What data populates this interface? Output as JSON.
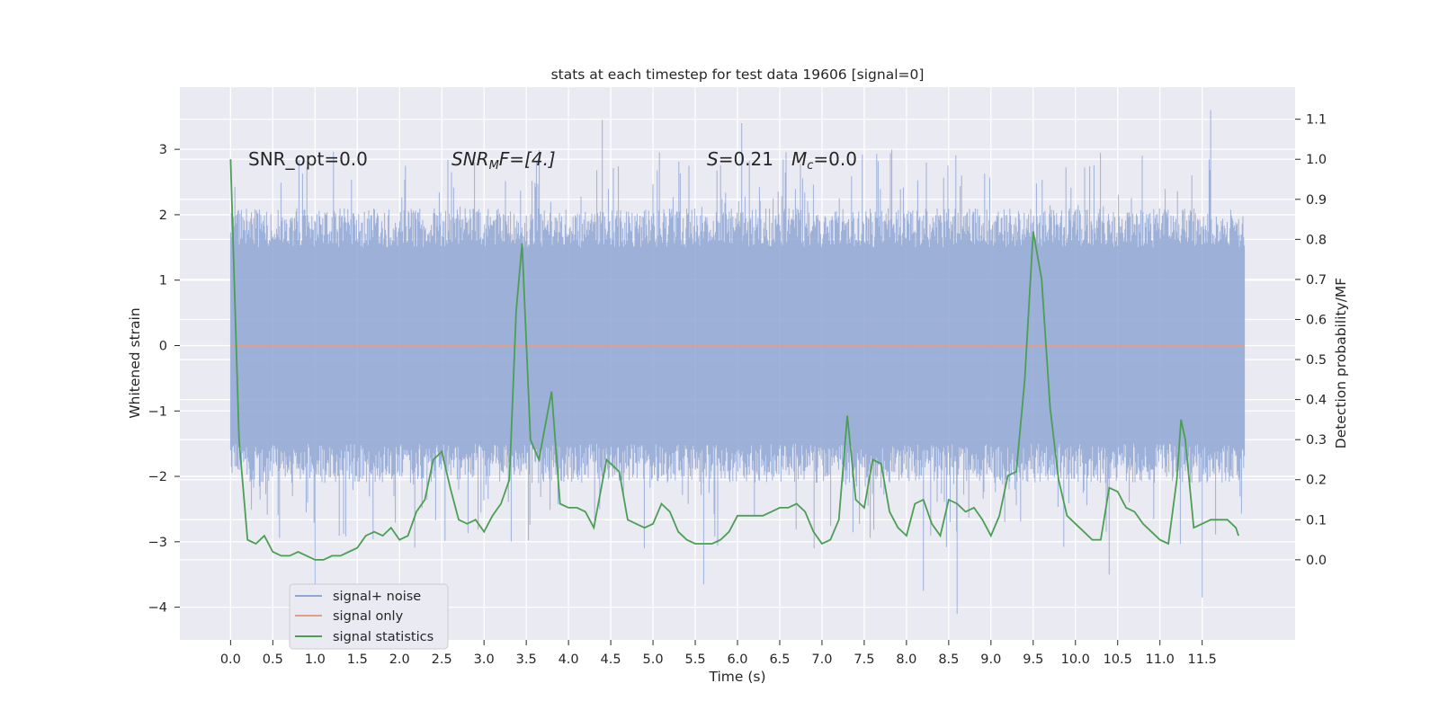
{
  "chart_data": {
    "type": "line",
    "title": "stats at each timestep for test data 19606 [signal=0]",
    "xlabel": "Time (s)",
    "ylabel_left": "Whitened strain",
    "ylabel_right": "Detection probability/MF",
    "xlim": [
      -0.6,
      12.6
    ],
    "ylim_left": [
      -4.5,
      3.95
    ],
    "ylim_right": [
      -0.2,
      1.18
    ],
    "xticks": [
      "0.0",
      "0.5",
      "1.0",
      "1.5",
      "2.0",
      "2.5",
      "3.0",
      "3.5",
      "4.0",
      "4.5",
      "5.0",
      "5.5",
      "6.0",
      "6.5",
      "7.0",
      "7.5",
      "8.0",
      "8.5",
      "9.0",
      "9.5",
      "10.0",
      "10.5",
      "11.0",
      "11.5"
    ],
    "yticks_left": [
      "3",
      "2",
      "1",
      "0",
      "−1",
      "−2",
      "−3",
      "−4"
    ],
    "yticks_right": [
      "1.1",
      "1.0",
      "0.9",
      "0.8",
      "0.7",
      "0.6",
      "0.5",
      "0.4",
      "0.3",
      "0.2",
      "0.1",
      "0.0"
    ],
    "grid": true,
    "legend_position": "lower-left",
    "annotations": {
      "snr_opt": "SNR_opt=0.0",
      "snr_mf_base": "SNR",
      "snr_mf_sub": "M",
      "snr_mf_rest": "F=[4.]",
      "s_label": "S",
      "s_value": "=0.21",
      "mc_base": "M",
      "mc_sub": "c",
      "mc_value": "=0.0"
    },
    "series": [
      {
        "name": "signal+ noise",
        "axis": "left",
        "color": "#8fa6d4",
        "style": "noise",
        "x_range": [
          0.0,
          12.0
        ],
        "envelope": [
          -2.1,
          2.1
        ],
        "extremes": [
          [
            1.0,
            -3.9
          ],
          [
            4.4,
            3.45
          ],
          [
            6.05,
            3.4
          ],
          [
            8.6,
            -4.1
          ],
          [
            11.6,
            3.6
          ],
          [
            10.4,
            -3.5
          ],
          [
            5.6,
            -3.65
          ],
          [
            11.5,
            -3.85
          ],
          [
            8.2,
            -3.75
          ]
        ]
      },
      {
        "name": "signal only",
        "axis": "left",
        "color": "#e39f85",
        "x": [
          0.0,
          12.0
        ],
        "y": [
          0.0,
          0.0
        ]
      },
      {
        "name": "signal statistics",
        "axis": "right",
        "color": "#4c9e55",
        "x": [
          0.0,
          0.1,
          0.2,
          0.3,
          0.4,
          0.5,
          0.6,
          0.7,
          0.8,
          0.9,
          1.0,
          1.1,
          1.2,
          1.3,
          1.4,
          1.5,
          1.6,
          1.7,
          1.8,
          1.9,
          2.0,
          2.1,
          2.2,
          2.3,
          2.4,
          2.5,
          2.6,
          2.7,
          2.8,
          2.9,
          3.0,
          3.1,
          3.2,
          3.3,
          3.38,
          3.45,
          3.55,
          3.65,
          3.72,
          3.8,
          3.9,
          4.0,
          4.1,
          4.2,
          4.3,
          4.45,
          4.6,
          4.7,
          4.8,
          4.9,
          5.0,
          5.1,
          5.2,
          5.3,
          5.4,
          5.5,
          5.6,
          5.7,
          5.8,
          5.9,
          6.0,
          6.1,
          6.2,
          6.3,
          6.4,
          6.5,
          6.6,
          6.7,
          6.8,
          6.9,
          7.0,
          7.1,
          7.2,
          7.3,
          7.4,
          7.5,
          7.6,
          7.7,
          7.8,
          7.9,
          8.0,
          8.1,
          8.2,
          8.3,
          8.4,
          8.5,
          8.6,
          8.7,
          8.8,
          8.9,
          9.0,
          9.1,
          9.2,
          9.3,
          9.4,
          9.5,
          9.6,
          9.7,
          9.8,
          9.9,
          10.0,
          10.1,
          10.2,
          10.3,
          10.4,
          10.5,
          10.6,
          10.7,
          10.8,
          10.9,
          11.0,
          11.1,
          11.2,
          11.25,
          11.3,
          11.4,
          11.5,
          11.6,
          11.7,
          11.8,
          11.9,
          11.93
        ],
        "y": [
          1.0,
          0.3,
          0.05,
          0.04,
          0.06,
          0.02,
          0.01,
          0.01,
          0.02,
          0.01,
          0.0,
          0.0,
          0.01,
          0.01,
          0.02,
          0.03,
          0.06,
          0.07,
          0.06,
          0.08,
          0.05,
          0.06,
          0.12,
          0.15,
          0.25,
          0.27,
          0.18,
          0.1,
          0.09,
          0.1,
          0.07,
          0.11,
          0.14,
          0.2,
          0.62,
          0.79,
          0.3,
          0.25,
          0.33,
          0.42,
          0.14,
          0.13,
          0.13,
          0.12,
          0.08,
          0.25,
          0.22,
          0.1,
          0.09,
          0.08,
          0.09,
          0.14,
          0.12,
          0.07,
          0.05,
          0.04,
          0.04,
          0.04,
          0.05,
          0.07,
          0.11,
          0.11,
          0.11,
          0.11,
          0.12,
          0.13,
          0.13,
          0.14,
          0.12,
          0.07,
          0.04,
          0.05,
          0.1,
          0.36,
          0.15,
          0.13,
          0.25,
          0.24,
          0.12,
          0.08,
          0.06,
          0.14,
          0.15,
          0.09,
          0.06,
          0.15,
          0.14,
          0.12,
          0.13,
          0.1,
          0.06,
          0.11,
          0.21,
          0.22,
          0.45,
          0.82,
          0.7,
          0.38,
          0.2,
          0.11,
          0.09,
          0.07,
          0.05,
          0.05,
          0.18,
          0.17,
          0.13,
          0.12,
          0.09,
          0.07,
          0.05,
          0.04,
          0.2,
          0.35,
          0.3,
          0.08,
          0.09,
          0.1,
          0.1,
          0.1,
          0.08,
          0.06
        ]
      }
    ]
  }
}
